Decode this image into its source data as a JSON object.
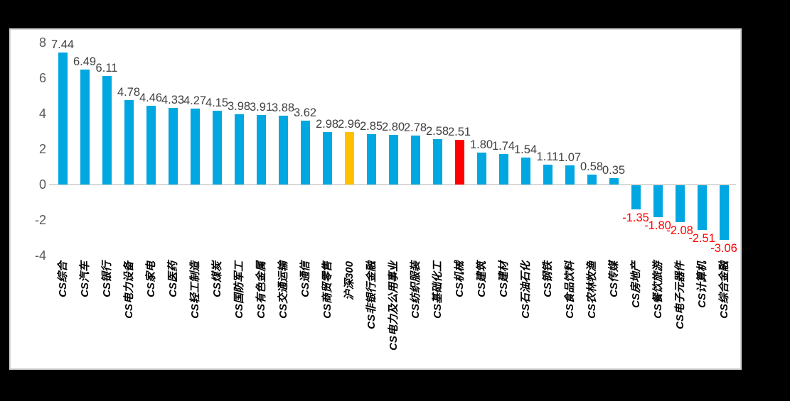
{
  "chart_data": {
    "type": "bar",
    "title": "",
    "categories": [
      "CS综合",
      "CS汽车",
      "CS银行",
      "CS电力设备",
      "CS家电",
      "CS医药",
      "CS轻工制造",
      "CS煤炭",
      "CS国防军工",
      "CS有色金属",
      "CS交通运输",
      "CS通信",
      "CS商贸零售",
      "沪深300",
      "CS非银行金融",
      "CS电力及公用事业",
      "CS纺织服装",
      "CS基础化工",
      "CS机械",
      "CS建筑",
      "CS建材",
      "CS石油石化",
      "CS钢铁",
      "CS食品饮料",
      "CS农林牧渔",
      "CS传媒",
      "CS房地产",
      "CS餐饮旅游",
      "CS电子元器件",
      "CS计算机",
      "CS综合金融"
    ],
    "values": [
      7.44,
      6.49,
      6.11,
      4.78,
      4.46,
      4.33,
      4.27,
      4.15,
      3.98,
      3.91,
      3.88,
      3.62,
      2.98,
      2.96,
      2.85,
      2.8,
      2.78,
      2.58,
      2.51,
      1.8,
      1.74,
      1.54,
      1.11,
      1.07,
      0.58,
      0.35,
      -1.35,
      -1.8,
      -2.08,
      -2.51,
      -3.06
    ],
    "value_labels": [
      "7.44",
      "6.49",
      "6.11",
      "4.78",
      "4.46",
      "4.33",
      "4.27",
      "4.15",
      "3.98",
      "3.91",
      "3.88",
      "3.62",
      "2.98",
      "2.96",
      "2.85",
      "2.80",
      "2.78",
      "2.58",
      "2.51",
      "1.80",
      "1.74",
      "1.54",
      "1.11",
      "1.07",
      "0.58",
      "0.35",
      "-1.35",
      "-1.80",
      "-2.08",
      "-2.51",
      "-3.06"
    ],
    "bar_roles": [
      "default",
      "default",
      "default",
      "default",
      "default",
      "default",
      "default",
      "default",
      "default",
      "default",
      "default",
      "default",
      "default",
      "benchmark",
      "default",
      "default",
      "default",
      "default",
      "focus",
      "default",
      "default",
      "default",
      "default",
      "default",
      "default",
      "default",
      "default",
      "default",
      "default",
      "default",
      "default"
    ],
    "palette": {
      "default": "#00A7E1",
      "benchmark": "#FFC000",
      "focus": "#FF0000"
    },
    "highlighted_bars": {
      "benchmark": "沪深300",
      "focus": "CS机械"
    },
    "yticks": [
      8,
      6,
      4,
      2,
      0,
      -2,
      -4
    ],
    "ylim": [
      -4,
      8
    ],
    "grid": false,
    "legend": false,
    "xlabel": "",
    "ylabel": "",
    "label_colors": {
      "positive_value": "#404040",
      "negative_value": "#FF0000",
      "axis_tick": "#595959",
      "category": "#000000"
    },
    "axis_line_color": "#D9D9D9"
  },
  "colors": {
    "page_background": "#000000",
    "panel_background": "#FFFFFF",
    "panel_border": "#D6D6D6"
  }
}
